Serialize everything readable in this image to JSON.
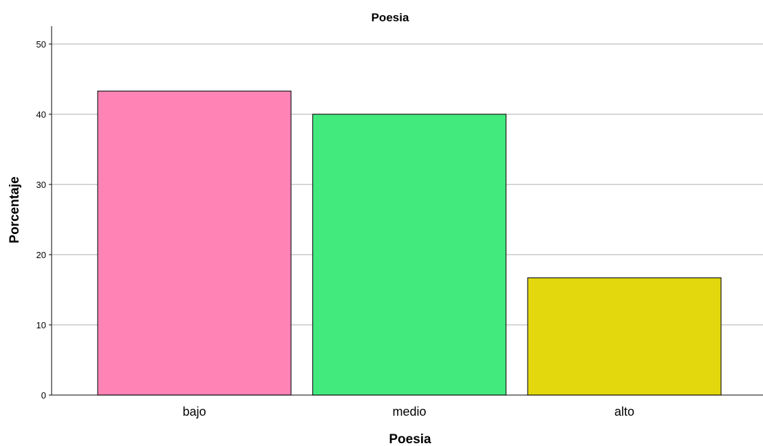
{
  "chart_data": {
    "type": "bar",
    "title": "Poesia",
    "xlabel": "Poesia",
    "ylabel": "Porcentaje",
    "categories": [
      "bajo",
      "medio",
      "alto"
    ],
    "values": [
      43.3,
      40.0,
      16.7
    ],
    "ylim": [
      0,
      52
    ],
    "yticks": [
      "0",
      "10",
      "20",
      "30",
      "40",
      "50"
    ],
    "grid": "horizontal",
    "colors": [
      "#FF83B5",
      "#42EA7E",
      "#E3D80E"
    ]
  }
}
